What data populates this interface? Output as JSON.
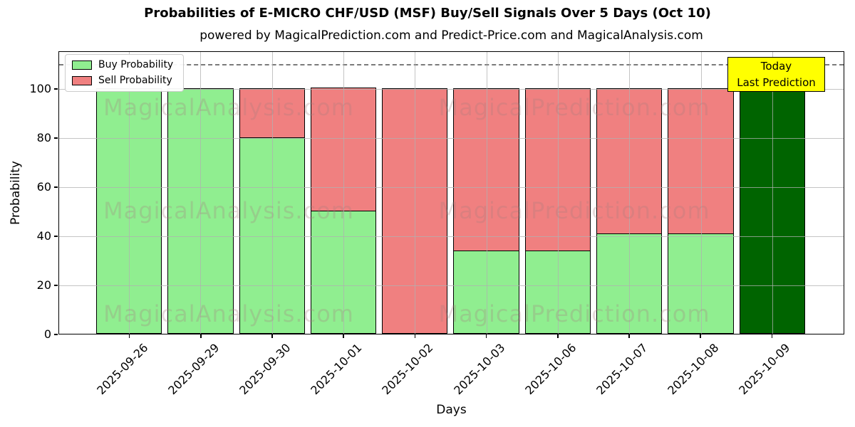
{
  "title": "Probabilities of E-MICRO CHF/USD (MSF) Buy/Sell Signals Over 5 Days (Oct 10)",
  "subtitle": "powered by MagicalPrediction.com and Predict-Price.com and MagicalAnalysis.com",
  "legend": {
    "buy_label": "Buy Probability",
    "sell_label": "Sell Probability"
  },
  "annotation": {
    "line1": "Today",
    "line2": "Last Prediction",
    "bg_color": "#ffff00"
  },
  "watermarks": {
    "left": "MagicalAnalysis.com",
    "right": "MagicalPrediction.com"
  },
  "chart_data": {
    "type": "bar",
    "stacked": true,
    "title": "Probabilities of E-MICRO CHF/USD (MSF) Buy/Sell Signals Over 5 Days (Oct 10)",
    "xlabel": "Days",
    "ylabel": "Probability",
    "ylim": [
      0,
      115
    ],
    "yticks": [
      0,
      20,
      40,
      60,
      80,
      100
    ],
    "grid": true,
    "dashed_line_y": 110,
    "legend_position": "upper left",
    "categories": [
      "2025-09-26",
      "2025-09-29",
      "2025-09-30",
      "2025-10-01",
      "2025-10-02",
      "2025-10-03",
      "2025-10-06",
      "2025-10-07",
      "2025-10-08",
      "2025-10-09"
    ],
    "series": [
      {
        "name": "Buy Probability",
        "color": "#90EE90",
        "values": [
          100,
          100,
          80,
          50,
          0,
          34,
          34,
          41,
          41,
          100
        ]
      },
      {
        "name": "Sell Probability",
        "color": "#F08080",
        "values": [
          0,
          0,
          20,
          50,
          100,
          66,
          66,
          59,
          59,
          0
        ]
      }
    ],
    "today_index": 9,
    "today_color": "#006400"
  },
  "colors": {
    "buy": "#90EE90",
    "sell": "#F08080",
    "today": "#006400",
    "grid": "#b0b0b0",
    "dashed": "#7a7a7a",
    "annotation_bg": "#ffff00"
  }
}
